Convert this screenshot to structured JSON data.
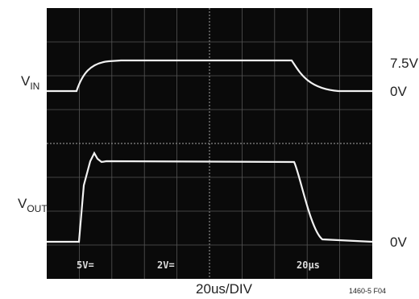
{
  "traces": {
    "vin": {
      "label": "V",
      "label_sub": "IN",
      "high": "7.5V",
      "low": "0V"
    },
    "vout": {
      "label": "V",
      "label_sub": "OUT",
      "low": "0V"
    }
  },
  "screen": {
    "ch1": "5V=",
    "ch2": "2V=",
    "time": "20µs"
  },
  "footer": {
    "timebase": "20us/DIV",
    "figure_id": "1460-5 F04"
  }
}
